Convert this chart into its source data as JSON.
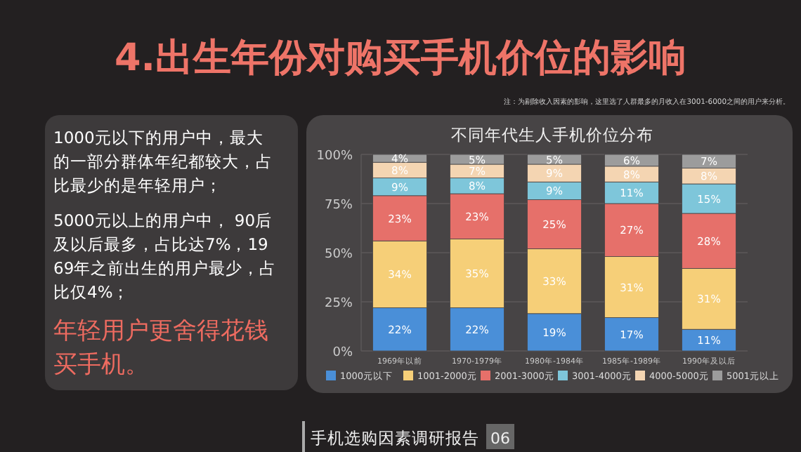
{
  "chart_data": {
    "type": "bar",
    "stacked": true,
    "title": "4.出生年份对购买手机价位的影响",
    "subtitle": "不同年代生人手机价位分布",
    "categories": [
      "1969年以前",
      "1970-1979年",
      "1980年-1984年",
      "1985年-1989年",
      "1990年及以后"
    ],
    "series": [
      {
        "name": "1000元以下",
        "color": "#4a8fd8",
        "values": [
          22,
          22,
          19,
          17,
          11
        ],
        "value_labels": [
          "22%",
          "22%",
          "19%",
          "17%",
          "11%"
        ]
      },
      {
        "name": "1001-2000元",
        "color": "#f6cf78",
        "values": [
          34,
          35,
          33,
          31,
          31
        ],
        "value_labels": [
          "34%",
          "35%",
          "33%",
          "31%",
          "31%"
        ]
      },
      {
        "name": "2001-3000元",
        "color": "#e6706a",
        "values": [
          23,
          23,
          25,
          27,
          28
        ],
        "value_labels": [
          "23%",
          "23%",
          "25%",
          "27%",
          "28%"
        ]
      },
      {
        "name": "3001-4000元",
        "color": "#7ec6da",
        "values": [
          9,
          8,
          9,
          11,
          15
        ],
        "value_labels": [
          "9%",
          "8%",
          "9%",
          "11%",
          "15%"
        ]
      },
      {
        "name": "4000-5000元",
        "color": "#f4d5b2",
        "values": [
          8,
          7,
          9,
          8,
          8
        ],
        "value_labels": [
          "8%",
          "7%",
          "9%",
          "8%",
          "8%"
        ]
      },
      {
        "name": "5001元以上",
        "color": "#9c9c9c",
        "values": [
          4,
          5,
          5,
          6,
          7
        ],
        "value_labels": [
          "4%",
          "5%",
          "5%",
          "6%",
          "7%"
        ]
      }
    ],
    "ylim": [
      0,
      100
    ],
    "yticks": [
      {
        "value": 0,
        "label": "0%"
      },
      {
        "value": 25,
        "label": "25%"
      },
      {
        "value": 50,
        "label": "50%"
      },
      {
        "value": 75,
        "label": "75%"
      },
      {
        "value": 100,
        "label": "100%"
      }
    ],
    "grid": "y",
    "legend": "bottom",
    "annotations": [
      "注：为剔除收入因素的影响，这里选了人群最多的月收入在3001-6000之间的用户来分析。",
      "1000元以下的用户中，最大的一部分群体年纪都较大，占比最少的是年轻用户；",
      "5000元以上的用户中， 90后及以后最多，占比达7%，1969年之前出生的用户最少，占比仅4%；",
      "年轻用户更舍得花钱买手机。",
      "手机选购因素调研报告",
      "06"
    ]
  }
}
